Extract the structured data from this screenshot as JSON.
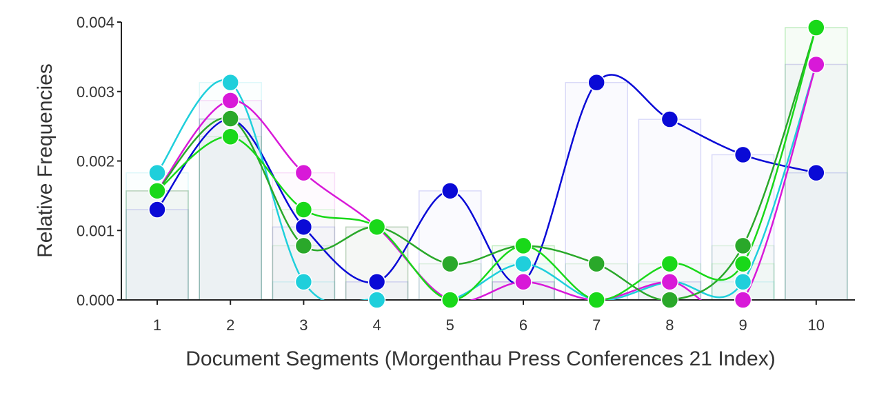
{
  "chart_data": {
    "type": "line",
    "title": "",
    "xlabel": "Document Segments (Morgenthau Press Conferences 21 Index)",
    "ylabel": "Relative Frequencies",
    "categories": [
      "1",
      "2",
      "3",
      "4",
      "5",
      "6",
      "7",
      "8",
      "9",
      "10"
    ],
    "ylim": [
      0,
      0.004
    ],
    "yticks": [
      "0.000",
      "0.001",
      "0.002",
      "0.003",
      "0.004"
    ],
    "grid": false,
    "legend": "none",
    "series": [
      {
        "color": "#0a0ad6",
        "values": [
          0.0013,
          0.0026,
          0.00105,
          0.00026,
          0.00157,
          0.00026,
          0.00313,
          0.0026,
          0.00209,
          0.00183
        ]
      },
      {
        "color": "#1fcfdb",
        "values": [
          0.00183,
          0.00313,
          0.00026,
          0.0,
          0.0,
          0.00052,
          0.0,
          0.00026,
          0.00026,
          0.00339
        ]
      },
      {
        "color": "#d819d8",
        "values": [
          0.00157,
          0.00287,
          0.00183,
          0.00105,
          0.0,
          0.00026,
          0.0,
          0.00026,
          0.0,
          0.00339
        ]
      },
      {
        "color": "#2aa82a",
        "values": [
          0.00157,
          0.00261,
          0.00078,
          0.00105,
          0.00052,
          0.00078,
          0.00052,
          0.0,
          0.00078,
          0.00392
        ]
      },
      {
        "color": "#19d819",
        "values": [
          0.00157,
          0.00235,
          0.0013,
          0.00105,
          0.0,
          0.00078,
          0.0,
          0.00052,
          0.00052,
          0.00392
        ]
      }
    ]
  }
}
